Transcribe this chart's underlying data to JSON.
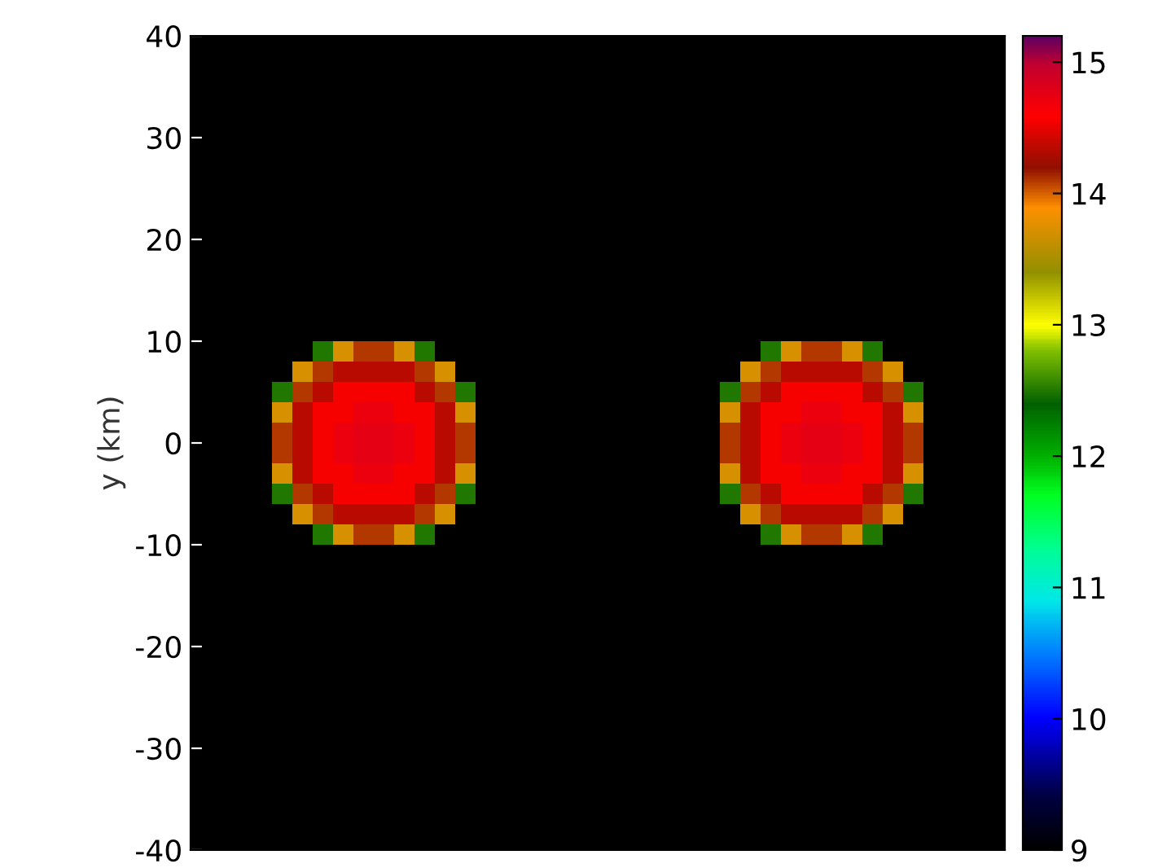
{
  "chart_data": {
    "type": "heatmap",
    "ylabel": "y (km)",
    "tick_labels": "y",
    "ylim": [
      -40,
      40
    ],
    "yticks": [
      -40,
      -30,
      -20,
      -10,
      0,
      10,
      20,
      30,
      40
    ],
    "clim": [
      9,
      15.2
    ],
    "cticks": [
      9,
      10,
      11,
      12,
      13,
      14,
      15
    ],
    "categories": [
      null,
      null,
      null,
      null,
      null,
      null,
      null,
      null,
      null,
      null,
      null,
      null,
      null,
      null,
      null,
      null,
      null,
      null,
      null,
      null,
      null,
      null,
      null,
      null,
      null,
      null,
      null,
      null,
      null,
      null,
      null,
      null,
      null,
      null,
      null,
      null,
      null,
      null,
      null,
      null
    ],
    "cells": [
      [
        9,
        9,
        9,
        9,
        9,
        9,
        9,
        9,
        9,
        9,
        9,
        9,
        9,
        9,
        9,
        9,
        9,
        9,
        9,
        9,
        9,
        9,
        9,
        9,
        9,
        9,
        9,
        9,
        9,
        9,
        9,
        9,
        9,
        9,
        9,
        9,
        9,
        9,
        9,
        9
      ],
      [
        9,
        9,
        9,
        9,
        9,
        9,
        9,
        9,
        9,
        9,
        9,
        9,
        9,
        9,
        9,
        9,
        9,
        9,
        9,
        9,
        9,
        9,
        9,
        9,
        9,
        9,
        9,
        9,
        9,
        9,
        9,
        9,
        9,
        9,
        9,
        9,
        9,
        9,
        9,
        9
      ],
      [
        9,
        9,
        9,
        9,
        9,
        9,
        9,
        9,
        9,
        9,
        9,
        9,
        9,
        9,
        9,
        9,
        9,
        9,
        9,
        9,
        9,
        9,
        9,
        9,
        9,
        9,
        9,
        9,
        9,
        9,
        9,
        9,
        9,
        9,
        9,
        9,
        9,
        9,
        9,
        9
      ],
      [
        9,
        9,
        9,
        9,
        9,
        9,
        9,
        9,
        9,
        9,
        9,
        9,
        9,
        9,
        9,
        9,
        9,
        9,
        9,
        9,
        9,
        9,
        9,
        9,
        9,
        9,
        9,
        9,
        9,
        9,
        9,
        9,
        9,
        9,
        9,
        9,
        9,
        9,
        9,
        9
      ],
      [
        9,
        9,
        9,
        9,
        9,
        9,
        9,
        9,
        9,
        9,
        9,
        9,
        9,
        9,
        9,
        9,
        9,
        9,
        9,
        9,
        9,
        9,
        9,
        9,
        9,
        9,
        9,
        9,
        9,
        9,
        9,
        9,
        9,
        9,
        9,
        9,
        9,
        9,
        9,
        9
      ],
      [
        9,
        9,
        9,
        9,
        9,
        9,
        9,
        9,
        9,
        9,
        9,
        9,
        9,
        9,
        9,
        9,
        9,
        9,
        9,
        9,
        9,
        9,
        9,
        9,
        9,
        9,
        9,
        9,
        9,
        9,
        9,
        9,
        9,
        9,
        9,
        9,
        9,
        9,
        9,
        9
      ],
      [
        9,
        9,
        9,
        9,
        9,
        9,
        9,
        9,
        9,
        9,
        9,
        9,
        9,
        9,
        9,
        9,
        9,
        9,
        9,
        9,
        9,
        9,
        9,
        9,
        9,
        9,
        9,
        9,
        9,
        9,
        9,
        9,
        9,
        9,
        9,
        9,
        9,
        9,
        9,
        9
      ],
      [
        9,
        9,
        9,
        9,
        9,
        9,
        9,
        9,
        9,
        9,
        9,
        9,
        9,
        9,
        9,
        9,
        9,
        9,
        9,
        9,
        9,
        9,
        9,
        9,
        9,
        9,
        9,
        9,
        9,
        9,
        9,
        9,
        9,
        9,
        9,
        9,
        9,
        9,
        9,
        9
      ],
      [
        9,
        9,
        9,
        9,
        9,
        9,
        9,
        9,
        9,
        9,
        9,
        9,
        9,
        9,
        9,
        9,
        9,
        9,
        9,
        9,
        9,
        9,
        9,
        9,
        9,
        9,
        9,
        9,
        9,
        9,
        9,
        9,
        9,
        9,
        9,
        9,
        9,
        9,
        9,
        9
      ],
      [
        9,
        9,
        9,
        9,
        9,
        9,
        9,
        9,
        9,
        9,
        9,
        9,
        9,
        9,
        9,
        9,
        9,
        9,
        9,
        9,
        9,
        9,
        9,
        9,
        9,
        9,
        9,
        9,
        9,
        9,
        9,
        9,
        9,
        9,
        9,
        9,
        9,
        9,
        9,
        9
      ],
      [
        9,
        9,
        9,
        9,
        9,
        9,
        9,
        9,
        9,
        9,
        9,
        9,
        9,
        9,
        9,
        9,
        9,
        9,
        9,
        9,
        9,
        9,
        9,
        9,
        9,
        9,
        9,
        9,
        9,
        9,
        9,
        9,
        9,
        9,
        9,
        9,
        9,
        9,
        9,
        9
      ],
      [
        9,
        9,
        9,
        9,
        9,
        9,
        9,
        9,
        9,
        9,
        9,
        9,
        9,
        9,
        9,
        9,
        9,
        9,
        9,
        9,
        9,
        9,
        9,
        9,
        9,
        9,
        9,
        9,
        9,
        9,
        9,
        9,
        9,
        9,
        9,
        9,
        9,
        9,
        9,
        9
      ],
      [
        9,
        9,
        9,
        9,
        9,
        9,
        9,
        9,
        9,
        9,
        9,
        9,
        9,
        9,
        9,
        9,
        9,
        9,
        9,
        9,
        9,
        9,
        9,
        9,
        9,
        9,
        9,
        9,
        9,
        9,
        9,
        9,
        9,
        9,
        9,
        9,
        9,
        9,
        9,
        9
      ],
      [
        9,
        9,
        9,
        9,
        9,
        9,
        9,
        9,
        9,
        9,
        9,
        9,
        9,
        9,
        9,
        9,
        9,
        9,
        9,
        9,
        9,
        9,
        9,
        9,
        9,
        9,
        9,
        9,
        9,
        9,
        9,
        9,
        9,
        9,
        9,
        9,
        9,
        9,
        9,
        9
      ],
      [
        9,
        9,
        9,
        9,
        9,
        9,
        9,
        9,
        9,
        9,
        9,
        9,
        9,
        9,
        9,
        9,
        9,
        9,
        9,
        9,
        9,
        9,
        9,
        9,
        9,
        9,
        9,
        9,
        9,
        9,
        9,
        9,
        9,
        9,
        9,
        9,
        9,
        9,
        9,
        9
      ],
      [
        9,
        9,
        9,
        9,
        9,
        9,
        12.5,
        13.7,
        14.1,
        14.1,
        13.7,
        12.5,
        9,
        9,
        9,
        9,
        9,
        9,
        9,
        9,
        9,
        9,
        9,
        9,
        9,
        9,
        9,
        9,
        12.5,
        13.7,
        14.1,
        14.1,
        13.7,
        12.5,
        9,
        9,
        9,
        9,
        9,
        9
      ],
      [
        9,
        9,
        9,
        9,
        9,
        13.7,
        14.1,
        14.35,
        14.35,
        14.35,
        14.35,
        14.1,
        13.7,
        9,
        9,
        9,
        9,
        9,
        9,
        9,
        9,
        9,
        9,
        9,
        9,
        9,
        9,
        13.7,
        14.1,
        14.35,
        14.35,
        14.35,
        14.35,
        14.1,
        13.7,
        9,
        9,
        9,
        9,
        9
      ],
      [
        9,
        9,
        9,
        9,
        12.5,
        14.1,
        14.35,
        14.55,
        14.55,
        14.55,
        14.55,
        14.35,
        14.1,
        12.5,
        9,
        9,
        9,
        9,
        9,
        9,
        9,
        9,
        9,
        9,
        9,
        9,
        12.5,
        14.1,
        14.35,
        14.55,
        14.55,
        14.55,
        14.55,
        14.35,
        14.1,
        12.5,
        9,
        9,
        9,
        9
      ],
      [
        9,
        9,
        9,
        9,
        13.7,
        14.35,
        14.55,
        14.55,
        14.7,
        14.7,
        14.55,
        14.55,
        14.35,
        13.7,
        9,
        9,
        9,
        9,
        9,
        9,
        9,
        9,
        9,
        9,
        9,
        9,
        13.7,
        14.35,
        14.55,
        14.55,
        14.7,
        14.7,
        14.55,
        14.55,
        14.35,
        13.7,
        9,
        9,
        9,
        9
      ],
      [
        9,
        9,
        9,
        9,
        14.1,
        14.35,
        14.55,
        14.7,
        14.75,
        14.75,
        14.7,
        14.55,
        14.35,
        14.1,
        9,
        9,
        9,
        9,
        9,
        9,
        9,
        9,
        9,
        9,
        9,
        9,
        14.1,
        14.35,
        14.55,
        14.7,
        14.75,
        14.75,
        14.7,
        14.55,
        14.35,
        14.1,
        9,
        9,
        9,
        9
      ],
      [
        9,
        9,
        9,
        9,
        14.1,
        14.35,
        14.55,
        14.7,
        14.75,
        14.75,
        14.7,
        14.55,
        14.35,
        14.1,
        9,
        9,
        9,
        9,
        9,
        9,
        9,
        9,
        9,
        9,
        9,
        9,
        14.1,
        14.35,
        14.55,
        14.7,
        14.75,
        14.75,
        14.7,
        14.55,
        14.35,
        14.1,
        9,
        9,
        9,
        9
      ],
      [
        9,
        9,
        9,
        9,
        13.7,
        14.35,
        14.55,
        14.55,
        14.7,
        14.7,
        14.55,
        14.55,
        14.35,
        13.7,
        9,
        9,
        9,
        9,
        9,
        9,
        9,
        9,
        9,
        9,
        9,
        9,
        13.7,
        14.35,
        14.55,
        14.55,
        14.7,
        14.7,
        14.55,
        14.55,
        14.35,
        13.7,
        9,
        9,
        9,
        9
      ],
      [
        9,
        9,
        9,
        9,
        12.5,
        14.1,
        14.35,
        14.55,
        14.55,
        14.55,
        14.55,
        14.35,
        14.1,
        12.5,
        9,
        9,
        9,
        9,
        9,
        9,
        9,
        9,
        9,
        9,
        9,
        9,
        12.5,
        14.1,
        14.35,
        14.55,
        14.55,
        14.55,
        14.55,
        14.35,
        14.1,
        12.5,
        9,
        9,
        9,
        9
      ],
      [
        9,
        9,
        9,
        9,
        9,
        13.7,
        14.1,
        14.35,
        14.35,
        14.35,
        14.35,
        14.1,
        13.7,
        9,
        9,
        9,
        9,
        9,
        9,
        9,
        9,
        9,
        9,
        9,
        9,
        9,
        9,
        13.7,
        14.1,
        14.35,
        14.35,
        14.35,
        14.35,
        14.1,
        13.7,
        9,
        9,
        9,
        9,
        9
      ],
      [
        9,
        9,
        9,
        9,
        9,
        9,
        12.5,
        13.7,
        14.1,
        14.1,
        13.7,
        12.5,
        9,
        9,
        9,
        9,
        9,
        9,
        9,
        9,
        9,
        9,
        9,
        9,
        9,
        9,
        9,
        9,
        12.5,
        13.7,
        14.1,
        14.1,
        13.7,
        12.5,
        9,
        9,
        9,
        9,
        9,
        9
      ],
      [
        9,
        9,
        9,
        9,
        9,
        9,
        9,
        9,
        9,
        9,
        9,
        9,
        9,
        9,
        9,
        9,
        9,
        9,
        9,
        9,
        9,
        9,
        9,
        9,
        9,
        9,
        9,
        9,
        9,
        9,
        9,
        9,
        9,
        9,
        9,
        9,
        9,
        9,
        9,
        9
      ],
      [
        9,
        9,
        9,
        9,
        9,
        9,
        9,
        9,
        9,
        9,
        9,
        9,
        9,
        9,
        9,
        9,
        9,
        9,
        9,
        9,
        9,
        9,
        9,
        9,
        9,
        9,
        9,
        9,
        9,
        9,
        9,
        9,
        9,
        9,
        9,
        9,
        9,
        9,
        9,
        9
      ],
      [
        9,
        9,
        9,
        9,
        9,
        9,
        9,
        9,
        9,
        9,
        9,
        9,
        9,
        9,
        9,
        9,
        9,
        9,
        9,
        9,
        9,
        9,
        9,
        9,
        9,
        9,
        9,
        9,
        9,
        9,
        9,
        9,
        9,
        9,
        9,
        9,
        9,
        9,
        9,
        9
      ],
      [
        9,
        9,
        9,
        9,
        9,
        9,
        9,
        9,
        9,
        9,
        9,
        9,
        9,
        9,
        9,
        9,
        9,
        9,
        9,
        9,
        9,
        9,
        9,
        9,
        9,
        9,
        9,
        9,
        9,
        9,
        9,
        9,
        9,
        9,
        9,
        9,
        9,
        9,
        9,
        9
      ],
      [
        9,
        9,
        9,
        9,
        9,
        9,
        9,
        9,
        9,
        9,
        9,
        9,
        9,
        9,
        9,
        9,
        9,
        9,
        9,
        9,
        9,
        9,
        9,
        9,
        9,
        9,
        9,
        9,
        9,
        9,
        9,
        9,
        9,
        9,
        9,
        9,
        9,
        9,
        9,
        9
      ],
      [
        9,
        9,
        9,
        9,
        9,
        9,
        9,
        9,
        9,
        9,
        9,
        9,
        9,
        9,
        9,
        9,
        9,
        9,
        9,
        9,
        9,
        9,
        9,
        9,
        9,
        9,
        9,
        9,
        9,
        9,
        9,
        9,
        9,
        9,
        9,
        9,
        9,
        9,
        9,
        9
      ],
      [
        9,
        9,
        9,
        9,
        9,
        9,
        9,
        9,
        9,
        9,
        9,
        9,
        9,
        9,
        9,
        9,
        9,
        9,
        9,
        9,
        9,
        9,
        9,
        9,
        9,
        9,
        9,
        9,
        9,
        9,
        9,
        9,
        9,
        9,
        9,
        9,
        9,
        9,
        9,
        9
      ],
      [
        9,
        9,
        9,
        9,
        9,
        9,
        9,
        9,
        9,
        9,
        9,
        9,
        9,
        9,
        9,
        9,
        9,
        9,
        9,
        9,
        9,
        9,
        9,
        9,
        9,
        9,
        9,
        9,
        9,
        9,
        9,
        9,
        9,
        9,
        9,
        9,
        9,
        9,
        9,
        9
      ],
      [
        9,
        9,
        9,
        9,
        9,
        9,
        9,
        9,
        9,
        9,
        9,
        9,
        9,
        9,
        9,
        9,
        9,
        9,
        9,
        9,
        9,
        9,
        9,
        9,
        9,
        9,
        9,
        9,
        9,
        9,
        9,
        9,
        9,
        9,
        9,
        9,
        9,
        9,
        9,
        9
      ],
      [
        9,
        9,
        9,
        9,
        9,
        9,
        9,
        9,
        9,
        9,
        9,
        9,
        9,
        9,
        9,
        9,
        9,
        9,
        9,
        9,
        9,
        9,
        9,
        9,
        9,
        9,
        9,
        9,
        9,
        9,
        9,
        9,
        9,
        9,
        9,
        9,
        9,
        9,
        9,
        9
      ],
      [
        9,
        9,
        9,
        9,
        9,
        9,
        9,
        9,
        9,
        9,
        9,
        9,
        9,
        9,
        9,
        9,
        9,
        9,
        9,
        9,
        9,
        9,
        9,
        9,
        9,
        9,
        9,
        9,
        9,
        9,
        9,
        9,
        9,
        9,
        9,
        9,
        9,
        9,
        9,
        9
      ],
      [
        9,
        9,
        9,
        9,
        9,
        9,
        9,
        9,
        9,
        9,
        9,
        9,
        9,
        9,
        9,
        9,
        9,
        9,
        9,
        9,
        9,
        9,
        9,
        9,
        9,
        9,
        9,
        9,
        9,
        9,
        9,
        9,
        9,
        9,
        9,
        9,
        9,
        9,
        9,
        9
      ],
      [
        9,
        9,
        9,
        9,
        9,
        9,
        9,
        9,
        9,
        9,
        9,
        9,
        9,
        9,
        9,
        9,
        9,
        9,
        9,
        9,
        9,
        9,
        9,
        9,
        9,
        9,
        9,
        9,
        9,
        9,
        9,
        9,
        9,
        9,
        9,
        9,
        9,
        9,
        9,
        9
      ],
      [
        9,
        9,
        9,
        9,
        9,
        9,
        9,
        9,
        9,
        9,
        9,
        9,
        9,
        9,
        9,
        9,
        9,
        9,
        9,
        9,
        9,
        9,
        9,
        9,
        9,
        9,
        9,
        9,
        9,
        9,
        9,
        9,
        9,
        9,
        9,
        9,
        9,
        9,
        9,
        9
      ],
      [
        9,
        9,
        9,
        9,
        9,
        9,
        9,
        9,
        9,
        9,
        9,
        9,
        9,
        9,
        9,
        9,
        9,
        9,
        9,
        9,
        9,
        9,
        9,
        9,
        9,
        9,
        9,
        9,
        9,
        9,
        9,
        9,
        9,
        9,
        9,
        9,
        9,
        9,
        9,
        9
      ]
    ]
  }
}
